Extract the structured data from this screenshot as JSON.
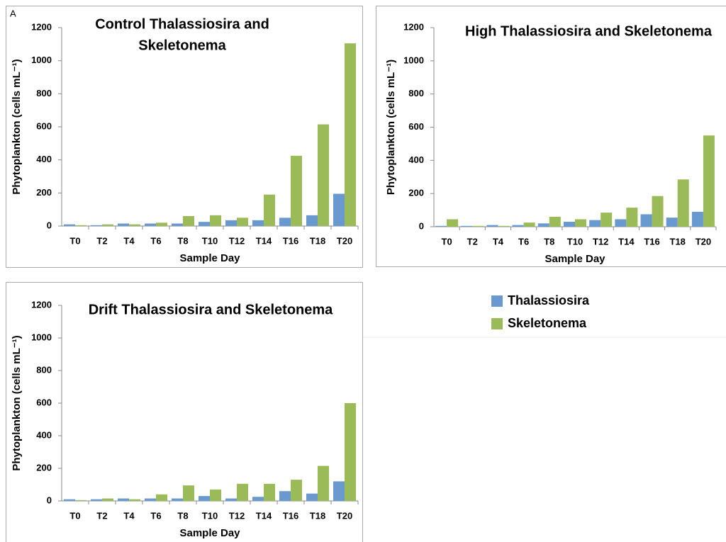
{
  "chart_data": [
    {
      "type": "bar",
      "panel_label": "A",
      "title": [
        "Control Thalassiosira and",
        "Skeletonema"
      ],
      "x_label": "Sample Day",
      "y_label": "Phytoplankton (cells mL⁻¹)",
      "categories": [
        "T0",
        "T2",
        "T4",
        "T6",
        "T8",
        "T10",
        "T12",
        "T14",
        "T16",
        "T18",
        "T20"
      ],
      "series": [
        {
          "name": "Thalassiosira",
          "color": "#6a99cf",
          "values": [
            10,
            5,
            15,
            15,
            15,
            25,
            35,
            35,
            50,
            65,
            195
          ]
        },
        {
          "name": "Skeletonema",
          "color": "#9bbb59",
          "values": [
            5,
            10,
            10,
            20,
            60,
            65,
            50,
            190,
            425,
            615,
            1105
          ]
        }
      ],
      "ylim": [
        0,
        1200
      ],
      "yticks": [
        0,
        200,
        400,
        600,
        800,
        1000,
        1200
      ]
    },
    {
      "type": "bar",
      "title": "High Thalassiosira and Skeletonema",
      "x_label": "Sample Day",
      "y_label": "Phytoplankton (cells mL⁻¹)",
      "categories": [
        "T0",
        "T2",
        "T4",
        "T6",
        "T8",
        "T10",
        "T12",
        "T14",
        "T16",
        "T18",
        "T20"
      ],
      "series": [
        {
          "color": "#6a99cf",
          "values": [
            5,
            5,
            10,
            10,
            20,
            30,
            40,
            45,
            75,
            55,
            90
          ]
        },
        {
          "color": "#9bbb59",
          "values": [
            45,
            5,
            5,
            25,
            60,
            45,
            85,
            115,
            185,
            285,
            550
          ]
        }
      ],
      "ylim": [
        0,
        1200
      ],
      "yticks": [
        0,
        200,
        400,
        600,
        800,
        1000,
        1200
      ]
    },
    {
      "type": "bar",
      "title": "Drift Thalassiosira and Skeletonema",
      "x_label": "Sample Day",
      "y_label": "Phytoplankton (cells mL⁻¹)",
      "categories": [
        "T0",
        "T2",
        "T4",
        "T6",
        "T8",
        "T10",
        "T12",
        "T14",
        "T16",
        "T18",
        "T20"
      ],
      "series": [
        {
          "color": "#6a99cf",
          "values": [
            10,
            10,
            15,
            15,
            15,
            30,
            15,
            25,
            60,
            45,
            120
          ]
        },
        {
          "color": "#9bbb59",
          "values": [
            5,
            15,
            10,
            40,
            95,
            70,
            105,
            105,
            130,
            215,
            600
          ]
        }
      ],
      "ylim": [
        0,
        1200
      ],
      "yticks": [
        0,
        200,
        400,
        600,
        800,
        1000,
        1200
      ]
    }
  ]
}
